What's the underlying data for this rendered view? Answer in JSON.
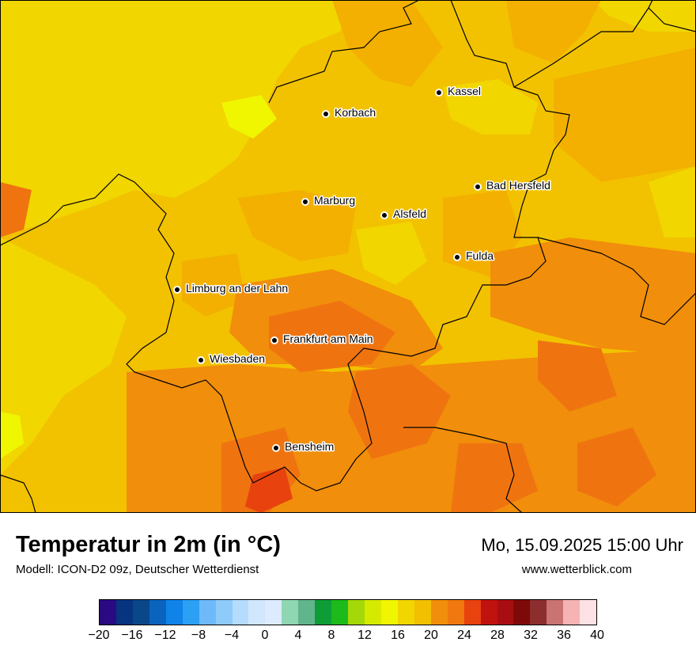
{
  "map": {
    "cities": [
      {
        "name": "Kassel"
      },
      {
        "name": "Korbach"
      },
      {
        "name": "Bad Hersfeld"
      },
      {
        "name": "Marburg"
      },
      {
        "name": "Alsfeld"
      },
      {
        "name": "Fulda"
      },
      {
        "name": "Limburg an der Lahn"
      },
      {
        "name": "Frankfurt am Main"
      },
      {
        "name": "Wiesbaden"
      },
      {
        "name": "Bensheim"
      }
    ],
    "colors": {
      "c14": "#f4e200",
      "c16": "#f1d600",
      "c18": "#f2c200",
      "c20": "#f3b000",
      "c22": "#f18e0b",
      "c24": "#ef7410",
      "c26": "#e8420f",
      "c12": "#f0f600"
    }
  },
  "footer": {
    "title": "Temperatur in 2m (in °C)",
    "subtitle": "Modell: ICON-D2 09z, Deutscher Wetterdienst",
    "datetime": "Mo, 15.09.2025 15:00 Uhr",
    "website": "www.wetterblick.com"
  },
  "legend": {
    "colors": [
      "#2a0a82",
      "#06347e",
      "#0a4788",
      "#0a63bd",
      "#0f83e8",
      "#2ba0f5",
      "#6ebaf9",
      "#8ecbfb",
      "#b5dcfd",
      "#d1e7fd",
      "#dcecfe",
      "#8fd6b2",
      "#61b58c",
      "#0e9c37",
      "#1dba1b",
      "#a4d808",
      "#d6ea00",
      "#f0f600",
      "#f1d600",
      "#f2c000",
      "#f18e0b",
      "#f0780f",
      "#e8420f",
      "#c0120f",
      "#a80e11",
      "#7d0a08",
      "#8c2e2e",
      "#c97373",
      "#f5b3b3",
      "#fde2e5"
    ],
    "ticks": [
      "−20",
      "−16",
      "−12",
      "−8",
      "−4",
      "0",
      "4",
      "8",
      "12",
      "16",
      "20",
      "24",
      "28",
      "32",
      "36",
      "40"
    ]
  }
}
